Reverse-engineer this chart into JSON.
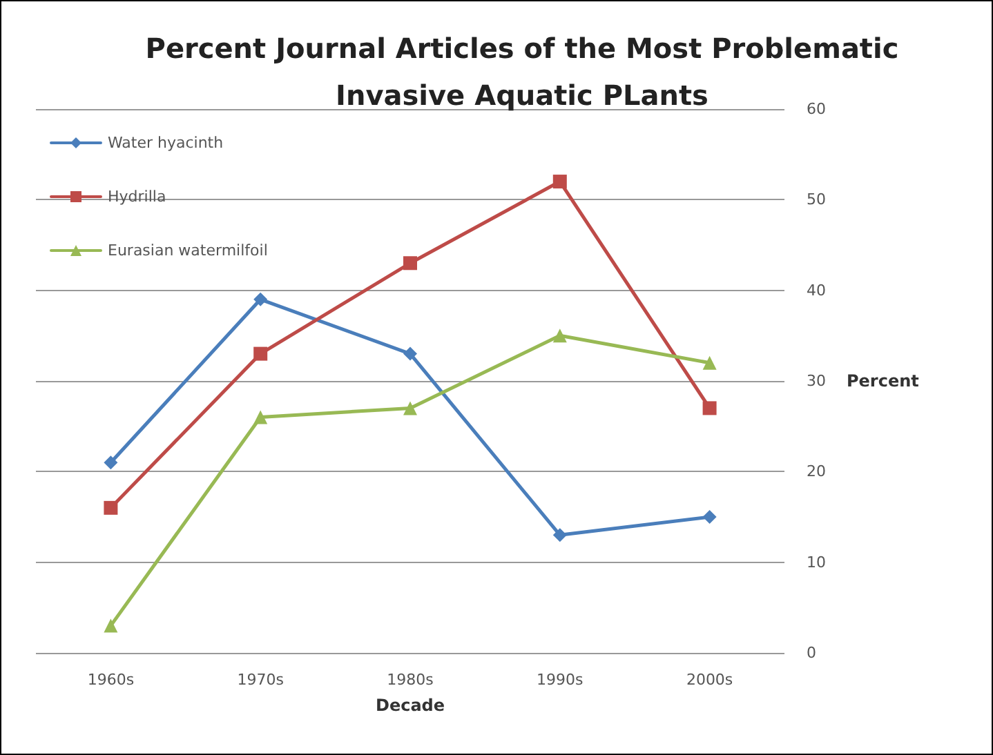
{
  "chart_data": {
    "type": "line",
    "title": "Percent Journal Articles of the Most Problematic\nInvasive Aquatic PLants",
    "xlabel": "Decade",
    "ylabel": "Percent",
    "categories": [
      "1960s",
      "1970s",
      "1980s",
      "1990s",
      "2000s"
    ],
    "series": [
      {
        "name": "Water hyacinth",
        "color": "#4a7ebb",
        "marker": "diamond",
        "values": [
          21,
          39,
          33,
          13,
          15
        ]
      },
      {
        "name": "Hydrilla",
        "color": "#be4b48",
        "marker": "square",
        "values": [
          16,
          33,
          43,
          52,
          27
        ]
      },
      {
        "name": "Eurasian watermilfoil",
        "color": "#98b954",
        "marker": "triangle",
        "values": [
          3,
          26,
          27,
          35,
          32
        ]
      }
    ],
    "ylim": [
      0,
      60
    ],
    "yticks": [
      0,
      10,
      20,
      30,
      40,
      50,
      60
    ],
    "grid": "y",
    "legend": "top left",
    "line_style": "solid"
  }
}
